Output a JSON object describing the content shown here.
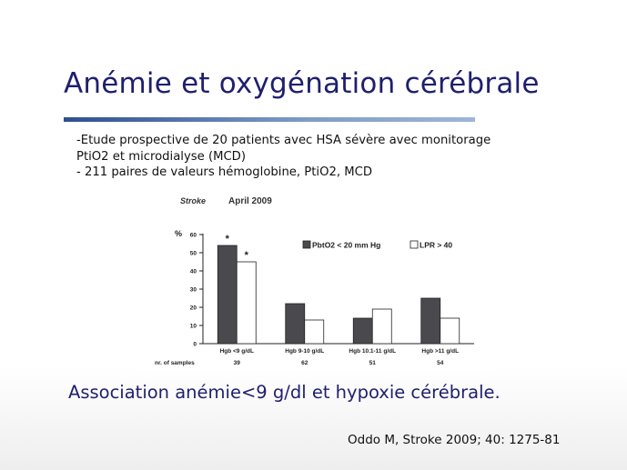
{
  "slide": {
    "title": "Anémie et oxygénation cérébrale",
    "bullets": [
      "-Etude prospective de 20 patients avec HSA sévère avec monitorage",
      "PtiO2 et microdialyse (MCD)",
      "- 211 paires de valeurs hémoglobine, PtiO2, MCD"
    ],
    "conclusion": "Association anémie<9 g/dl et hypoxie cérébrale.",
    "citation": "Oddo M, Stroke 2009; 40: 1275-81"
  },
  "chart_data": {
    "type": "bar",
    "header_journal": "Stroke",
    "header_date": "April 2009",
    "ylabel": "%",
    "ylim": [
      0,
      60
    ],
    "yticks": [
      "0",
      "10",
      "20",
      "30",
      "40",
      "50",
      "60"
    ],
    "categories": [
      "Hgb <9 g/dL",
      "Hgb 9-10 g/dL",
      "Hgb 10.1-11 g/dL",
      "Hgb >11 g/dL"
    ],
    "series": [
      {
        "name": "PbtO2 < 20 mm Hg",
        "values": [
          54,
          22,
          14,
          25
        ],
        "color": "#4a4a4e"
      },
      {
        "name": "LPR > 40",
        "values": [
          45,
          13,
          19,
          14
        ],
        "color": "#ffffff"
      }
    ],
    "annotations": [
      {
        "series": 0,
        "category": 0,
        "text": "*"
      },
      {
        "series": 1,
        "category": 0,
        "text": "*"
      }
    ],
    "samples_label": "nr. of samples",
    "samples": [
      "39",
      "62",
      "51",
      "54"
    ],
    "legend_position": "top-right",
    "grid": false
  }
}
